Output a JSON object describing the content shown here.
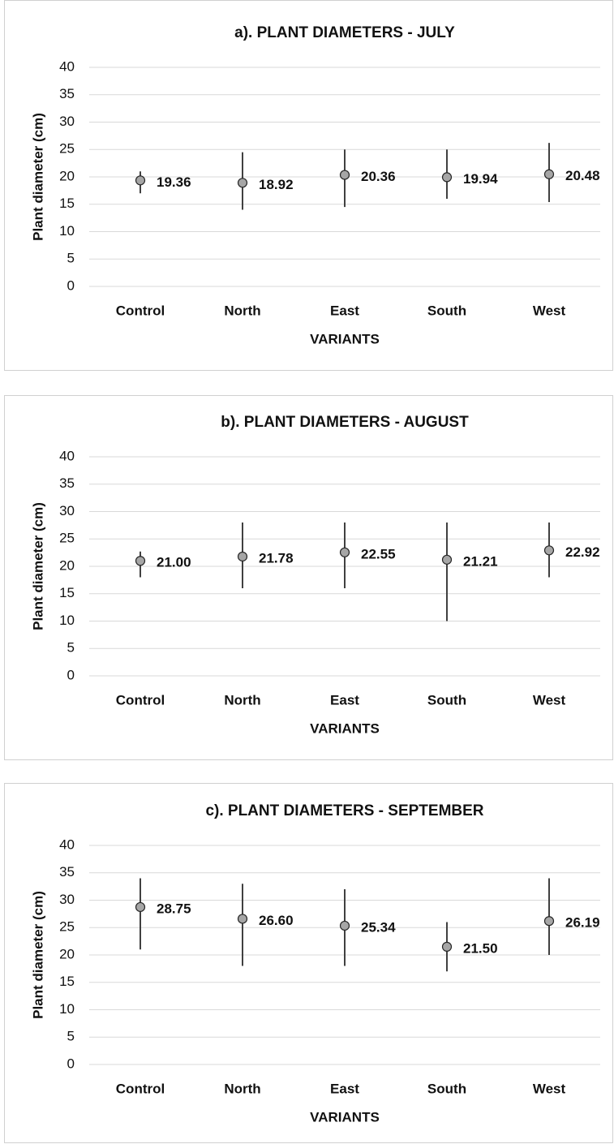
{
  "chart_data": [
    {
      "type": "dot",
      "title": "a). PLANT DIAMETERS - JULY",
      "x_label": "VARIANTS",
      "y_label": "Plant diameter (cm)",
      "categories": [
        "Control",
        "North",
        "East",
        "South",
        "West"
      ],
      "values": [
        19.36,
        18.92,
        20.36,
        19.94,
        20.48
      ],
      "value_labels": [
        "19.36",
        "18.92",
        "20.36",
        "19.94",
        "20.48"
      ],
      "low": [
        17,
        14,
        14.5,
        16,
        15.4
      ],
      "high": [
        21,
        24.5,
        25,
        25,
        26.2
      ],
      "ylim": [
        0,
        40
      ],
      "yticks": [
        0,
        5,
        10,
        15,
        20,
        25,
        30,
        35,
        40
      ],
      "grid": true,
      "color": "#a6a6a6"
    },
    {
      "type": "dot",
      "title": "b). PLANT DIAMETERS - AUGUST",
      "x_label": "VARIANTS",
      "y_label": "Plant diameter (cm)",
      "categories": [
        "Control",
        "North",
        "East",
        "South",
        "West"
      ],
      "values": [
        21,
        21.78,
        22.55,
        21.21,
        22.92
      ],
      "value_labels": [
        "21.00",
        "21.78",
        "22.55",
        "21.21",
        "22.92"
      ],
      "low": [
        18,
        16,
        16,
        10,
        18
      ],
      "high": [
        22.7,
        28,
        28,
        28,
        28
      ],
      "ylim": [
        0,
        40
      ],
      "yticks": [
        0,
        5,
        10,
        15,
        20,
        25,
        30,
        35,
        40
      ],
      "grid": true,
      "color": "#a6a6a6"
    },
    {
      "type": "dot",
      "title": "c). PLANT DIAMETERS - SEPTEMBER",
      "x_label": "VARIANTS",
      "y_label": "Plant diameter (cm)",
      "categories": [
        "Control",
        "North",
        "East",
        "South",
        "West"
      ],
      "values": [
        28.75,
        26.6,
        25.34,
        21.5,
        26.19
      ],
      "value_labels": [
        "28.75",
        "26.60",
        "25.34",
        "21.50",
        "26.19"
      ],
      "low": [
        21,
        18,
        18,
        17,
        20
      ],
      "high": [
        34,
        33,
        32,
        26,
        34
      ],
      "ylim": [
        0,
        40
      ],
      "yticks": [
        0,
        5,
        10,
        15,
        20,
        25,
        30,
        35,
        40
      ],
      "grid": true,
      "color": "#a6a6a6"
    }
  ]
}
